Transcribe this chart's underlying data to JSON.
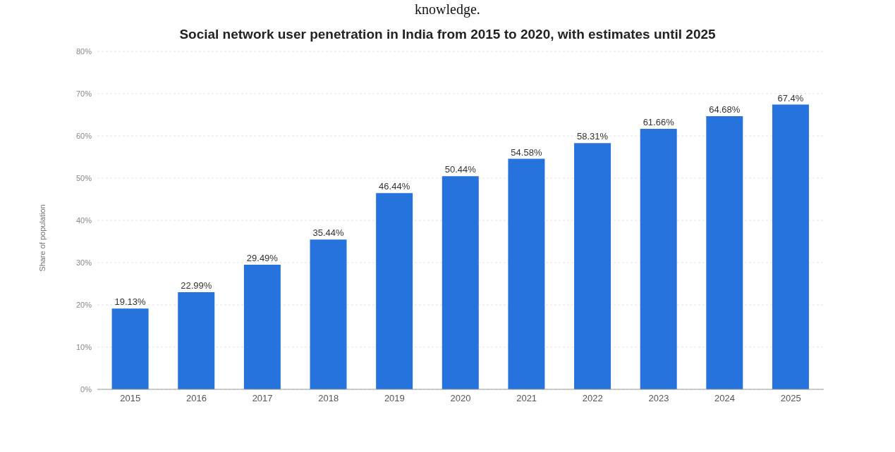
{
  "chart_data": {
    "type": "bar",
    "title": "Social network user penetration in India from 2015 to 2020, with estimates until 2025",
    "ylabel": "Share of population",
    "annotations": [
      "knowledge."
    ],
    "categories": [
      "2015",
      "2016",
      "2017",
      "2018",
      "2019",
      "2020",
      "2021",
      "2022",
      "2023",
      "2024",
      "2025"
    ],
    "values": [
      19.13,
      22.99,
      29.49,
      35.44,
      46.44,
      50.44,
      54.58,
      58.31,
      61.66,
      64.68,
      67.4
    ],
    "value_labels": [
      "19.13%",
      "22.99%",
      "29.49%",
      "35.44%",
      "46.44%",
      "50.44%",
      "54.58%",
      "58.31%",
      "61.66%",
      "64.68%",
      "67.4%"
    ],
    "color": "#2673dd",
    "ylim": [
      0,
      80
    ],
    "yticks": [
      {
        "value": 0,
        "label": "0%"
      },
      {
        "value": 10,
        "label": "10%"
      },
      {
        "value": 20,
        "label": "20%"
      },
      {
        "value": 30,
        "label": "30%"
      },
      {
        "value": 40,
        "label": "40%"
      },
      {
        "value": 50,
        "label": "50%"
      },
      {
        "value": 60,
        "label": "60%"
      },
      {
        "value": 70,
        "label": "70%"
      },
      {
        "value": 80,
        "label": "80%"
      }
    ],
    "grid": "y",
    "legend": false
  }
}
